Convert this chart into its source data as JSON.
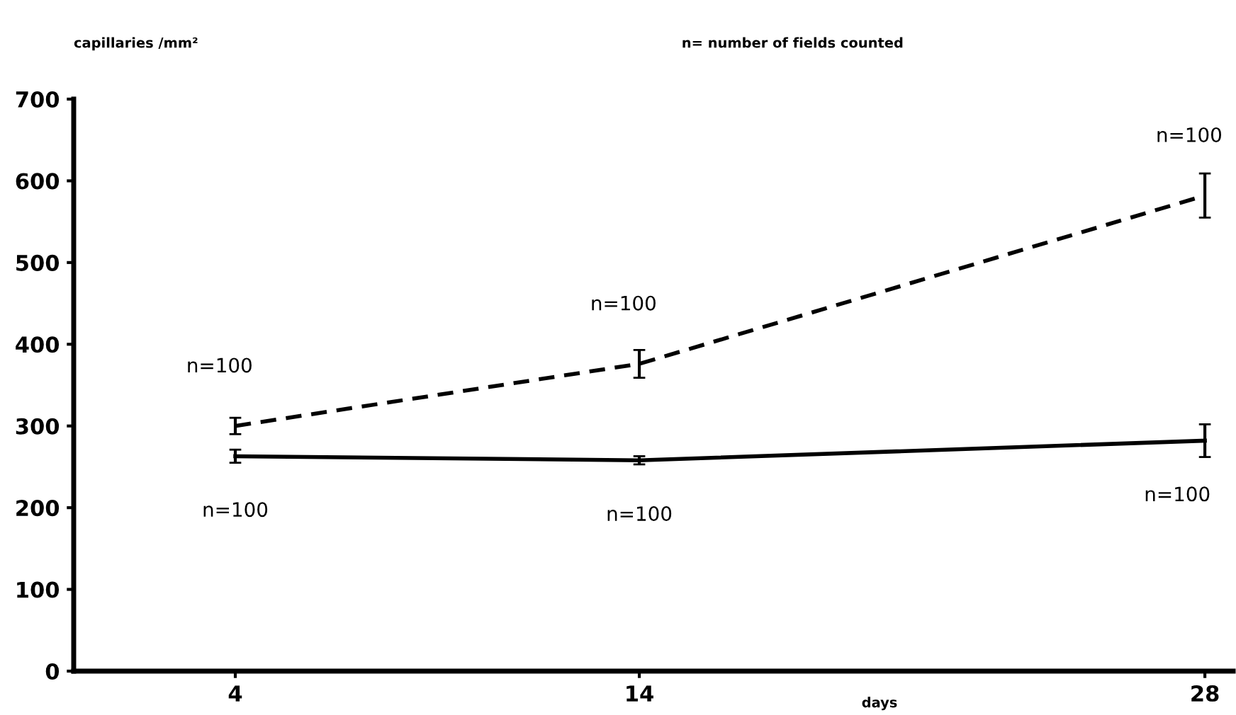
{
  "chart_data": {
    "type": "line",
    "ylabel": "capillaries /mm²",
    "xlabel": "days",
    "x": [
      4,
      14,
      28
    ],
    "xlim": [
      0,
      28.7
    ],
    "xticks": [
      4,
      14,
      28
    ],
    "ylim": [
      0,
      700
    ],
    "yticks": [
      0,
      100,
      200,
      300,
      400,
      500,
      600,
      700
    ],
    "grid": false,
    "marker": "none",
    "series": [
      {
        "color": "#000000",
        "line_style": "dashed",
        "values": [
          300,
          376,
          582
        ],
        "errors": [
          10,
          17,
          27
        ]
      },
      {
        "color": "#000000",
        "line_style": "solid",
        "values": [
          263,
          258,
          282
        ],
        "errors": [
          8,
          5,
          20
        ]
      }
    ],
    "annotations": [
      "n= number of fields counted",
      {
        "text": "n=100",
        "x": 4,
        "y": 300
      },
      {
        "text": "n=100",
        "x": 14,
        "y": 376
      },
      {
        "text": "n=100",
        "x": 28,
        "y": 582
      },
      {
        "text": "n=100",
        "x": 4,
        "y": 263
      },
      {
        "text": "n=100",
        "x": 14,
        "y": 258
      },
      {
        "text": "n=100",
        "x": 28,
        "y": 282
      }
    ]
  }
}
